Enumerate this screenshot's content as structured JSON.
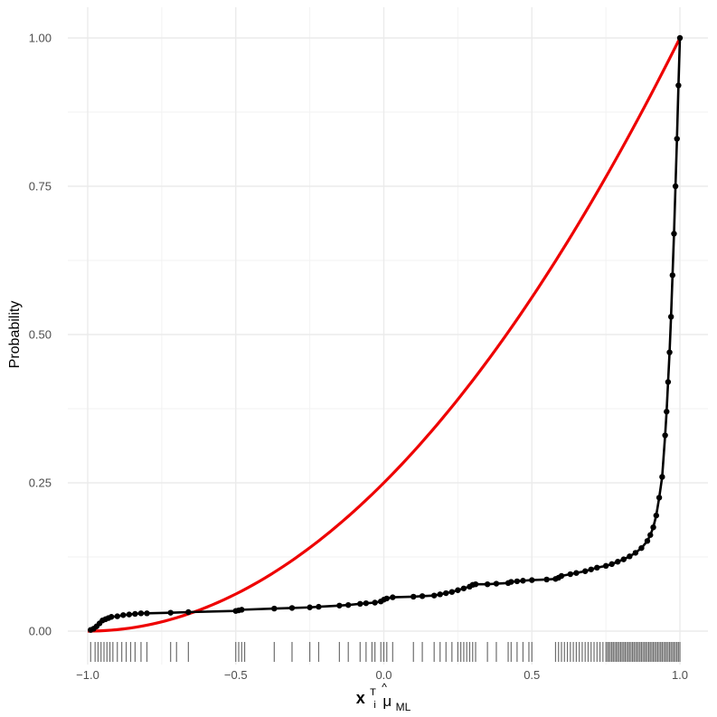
{
  "chart_data": {
    "type": "line",
    "title": "",
    "ylabel": "Probability",
    "xlabel": {
      "main": "x",
      "sup": "T",
      "sub_i": "i",
      "mu": "μ",
      "hat": "^",
      "sub": "ML"
    },
    "xlim": [
      -1.0,
      1.0
    ],
    "ylim": [
      0.0,
      1.0
    ],
    "x_ticks": [
      {
        "value": -1.0,
        "label": "−1.0"
      },
      {
        "value": -0.5,
        "label": "−0.5"
      },
      {
        "value": 0.0,
        "label": "0.0"
      },
      {
        "value": 0.5,
        "label": "0.5"
      },
      {
        "value": 1.0,
        "label": "1.0"
      }
    ],
    "y_ticks": [
      {
        "value": 0.0,
        "label": "0.00"
      },
      {
        "value": 0.25,
        "label": "0.25"
      },
      {
        "value": 0.5,
        "label": "0.50"
      },
      {
        "value": 0.75,
        "label": "0.75"
      },
      {
        "value": 1.0,
        "label": "1.00"
      }
    ],
    "grid": true,
    "series": [
      {
        "style": "line+points",
        "color": "#000000",
        "x": [
          -0.99,
          -0.98,
          -0.97,
          -0.96,
          -0.95,
          -0.94,
          -0.93,
          -0.92,
          -0.9,
          -0.88,
          -0.86,
          -0.84,
          -0.82,
          -0.8,
          -0.72,
          -0.66,
          -0.5,
          -0.49,
          -0.48,
          -0.37,
          -0.31,
          -0.25,
          -0.22,
          -0.15,
          -0.12,
          -0.08,
          -0.06,
          -0.03,
          -0.01,
          0.0,
          0.01,
          0.03,
          0.1,
          0.13,
          0.17,
          0.19,
          0.21,
          0.23,
          0.25,
          0.27,
          0.29,
          0.3,
          0.31,
          0.35,
          0.38,
          0.42,
          0.43,
          0.45,
          0.47,
          0.5,
          0.55,
          0.58,
          0.59,
          0.6,
          0.63,
          0.65,
          0.68,
          0.7,
          0.72,
          0.75,
          0.77,
          0.79,
          0.81,
          0.83,
          0.85,
          0.87,
          0.89,
          0.9,
          0.91,
          0.92,
          0.93,
          0.94,
          0.95,
          0.955,
          0.96,
          0.965,
          0.97,
          0.975,
          0.98,
          0.985,
          0.99,
          0.995,
          1.0
        ],
        "y": [
          0.002,
          0.004,
          0.008,
          0.013,
          0.018,
          0.02,
          0.022,
          0.024,
          0.025,
          0.027,
          0.028,
          0.029,
          0.03,
          0.03,
          0.031,
          0.032,
          0.034,
          0.035,
          0.036,
          0.038,
          0.039,
          0.04,
          0.041,
          0.043,
          0.044,
          0.046,
          0.047,
          0.048,
          0.05,
          0.053,
          0.055,
          0.057,
          0.058,
          0.059,
          0.06,
          0.062,
          0.064,
          0.066,
          0.069,
          0.072,
          0.075,
          0.078,
          0.079,
          0.079,
          0.08,
          0.081,
          0.083,
          0.084,
          0.085,
          0.086,
          0.087,
          0.088,
          0.09,
          0.093,
          0.096,
          0.098,
          0.101,
          0.104,
          0.107,
          0.11,
          0.113,
          0.117,
          0.121,
          0.126,
          0.132,
          0.14,
          0.152,
          0.162,
          0.175,
          0.195,
          0.225,
          0.26,
          0.33,
          0.37,
          0.42,
          0.47,
          0.53,
          0.6,
          0.67,
          0.75,
          0.83,
          0.92,
          1.0
        ]
      },
      {
        "style": "line",
        "color": "#ee0000",
        "function": "((1+x)/2)^2",
        "samples": 101
      }
    ],
    "rug": {
      "color": "#555555",
      "x": [
        -0.99,
        -0.975,
        -0.965,
        -0.955,
        -0.945,
        -0.935,
        -0.925,
        -0.915,
        -0.9,
        -0.885,
        -0.87,
        -0.855,
        -0.84,
        -0.82,
        -0.8,
        -0.72,
        -0.7,
        -0.66,
        -0.5,
        -0.49,
        -0.48,
        -0.47,
        -0.37,
        -0.31,
        -0.25,
        -0.22,
        -0.15,
        -0.12,
        -0.08,
        -0.06,
        -0.04,
        -0.03,
        -0.01,
        0.0,
        0.01,
        0.03,
        0.1,
        0.13,
        0.17,
        0.19,
        0.21,
        0.23,
        0.25,
        0.26,
        0.27,
        0.28,
        0.29,
        0.3,
        0.31,
        0.35,
        0.38,
        0.42,
        0.43,
        0.45,
        0.47,
        0.49,
        0.5,
        0.58,
        0.59,
        0.6,
        0.61,
        0.62,
        0.63,
        0.64,
        0.65,
        0.66,
        0.67,
        0.68,
        0.69,
        0.7,
        0.71,
        0.72,
        0.73,
        0.74,
        0.75,
        0.755,
        0.76,
        0.765,
        0.77,
        0.775,
        0.78,
        0.785,
        0.79,
        0.795,
        0.8,
        0.805,
        0.81,
        0.815,
        0.82,
        0.825,
        0.83,
        0.835,
        0.84,
        0.845,
        0.85,
        0.855,
        0.86,
        0.865,
        0.87,
        0.875,
        0.88,
        0.885,
        0.89,
        0.895,
        0.9,
        0.905,
        0.91,
        0.915,
        0.92,
        0.925,
        0.93,
        0.935,
        0.94,
        0.945,
        0.95,
        0.955,
        0.96,
        0.965,
        0.97,
        0.975,
        0.98,
        0.985,
        0.99,
        0.995,
        1.0
      ]
    }
  }
}
